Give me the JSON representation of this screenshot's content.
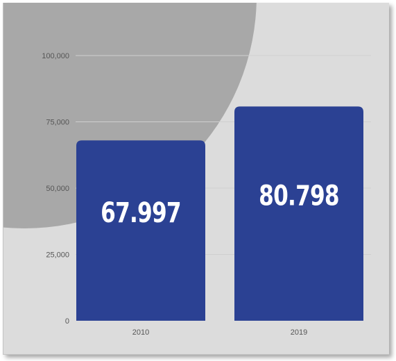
{
  "colors": {
    "background": "#dcdcdc",
    "decor_circle": "#a8a8a8",
    "bar": "#2b4193",
    "grid": "#cfcfcf",
    "text": "#555555",
    "data_label": "#ffffff"
  },
  "chart_data": {
    "type": "bar",
    "title": "",
    "xlabel": "",
    "ylabel": "",
    "categories": [
      "2010",
      "2019"
    ],
    "values": [
      67997,
      80798
    ],
    "data_labels": [
      "67.997",
      "80.798"
    ],
    "ylim": [
      0,
      100000
    ],
    "yticks": [
      0,
      25000,
      50000,
      75000,
      100000
    ],
    "ytick_labels": [
      "0",
      "25,000",
      "50,000",
      "75,000",
      "100,000"
    ],
    "grid": true,
    "legend": "none"
  }
}
